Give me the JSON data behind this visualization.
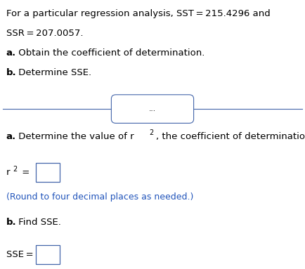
{
  "line1_top": "For a particular regression analysis, SST = 215.4296 and",
  "line2_top": "SSR = 207.0057.",
  "line3_top_bold": "a.",
  "line3_top_rest": " Obtain the coefficient of determination.",
  "line4_top_bold": "b.",
  "line4_top_rest": " Determine SSE.",
  "divider_label": "...",
  "part_a_bold": "a.",
  "part_a_text": " Determine the value of r",
  "part_a_sup": "2",
  "part_a_text2": ", the coefficient of determination.",
  "r2_base": "r",
  "r2_sup": "2",
  "r2_eq": " =",
  "round_note": "(Round to four decimal places as needed.)",
  "part_b_bold": "b.",
  "part_b_text": " Find SSE.",
  "sse_label": "SSE =",
  "bg_color": "#ffffff",
  "black": "#000000",
  "blue": "#2255bb",
  "divider_color": "#4466aa",
  "box_color": "#4466aa",
  "fs": 9.5,
  "fs_small": 9.0,
  "fs_sup": 7.0
}
